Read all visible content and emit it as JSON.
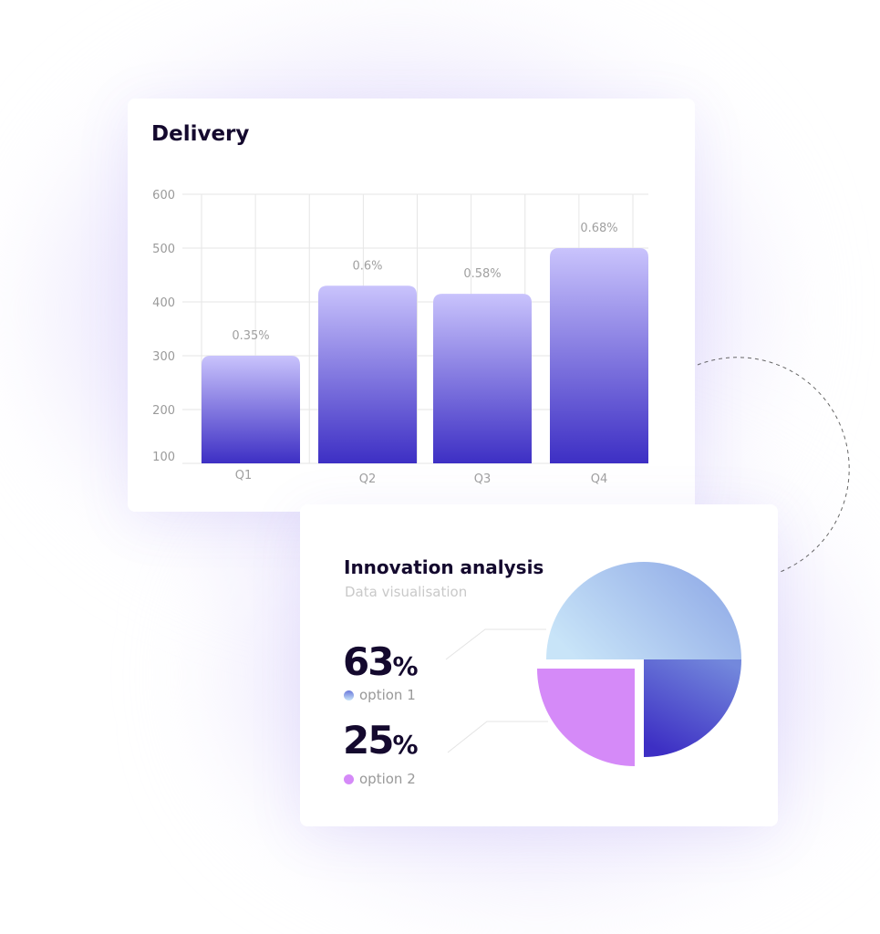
{
  "chart_data": [
    {
      "type": "bar",
      "title": "Delivery",
      "categories": [
        "Q1",
        "Q2",
        "Q3",
        "Q4"
      ],
      "values": [
        300,
        430,
        415,
        500
      ],
      "data_labels": [
        "0.35%",
        "0.6%",
        "0.58%",
        "0.68%"
      ],
      "yticks": [
        100,
        200,
        300,
        400,
        500,
        600
      ],
      "ylim": [
        100,
        600
      ],
      "grid": true,
      "colors": {
        "top": "#c9c3fc",
        "bottom": "#3d2fc4"
      }
    },
    {
      "type": "pie",
      "title": "Innovation analysis",
      "subtitle": "Data visualisation",
      "slices": [
        {
          "label": "option 1",
          "value": 63,
          "display": "63",
          "color_start": "#c8e4f8",
          "color_end": "#3d2fc4"
        },
        {
          "label": "option 2",
          "value": 25,
          "display": "25",
          "color": "#d58af8"
        }
      ],
      "unit": "%"
    }
  ]
}
